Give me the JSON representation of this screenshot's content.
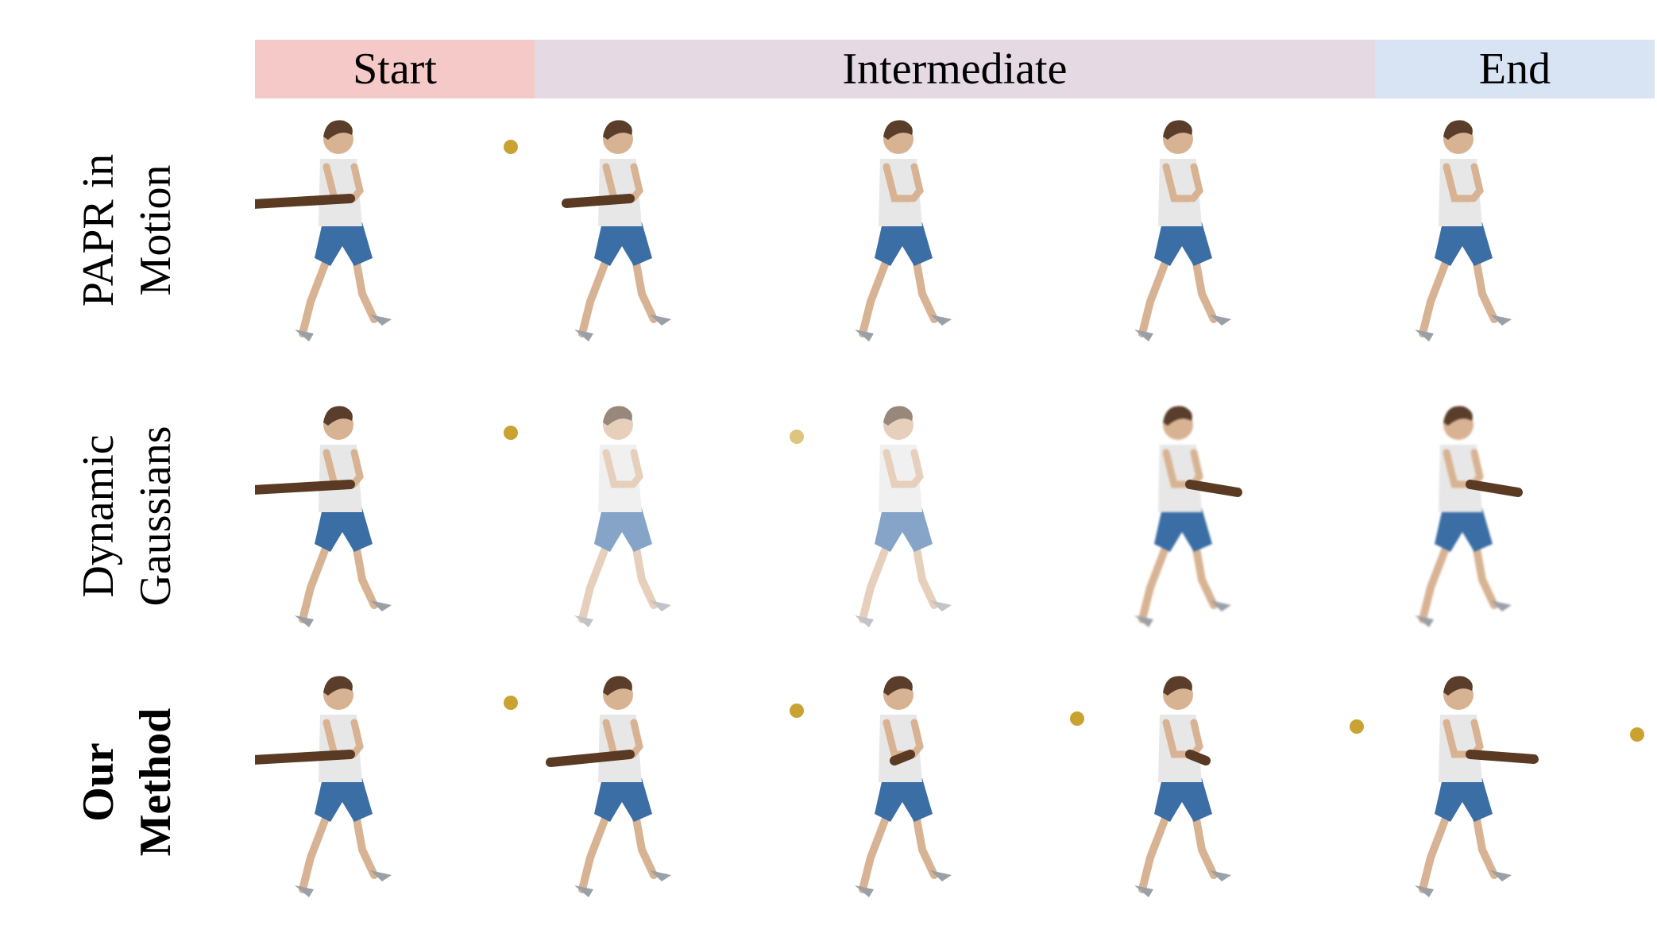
{
  "headers": {
    "start": "Start",
    "intermediate": "Intermediate",
    "end": "End"
  },
  "rows": [
    {
      "label_line1": "PAPR in",
      "label_line2": "Motion",
      "bold": false
    },
    {
      "label_line1": "Dynamic",
      "label_line2": "Gaussians",
      "bold": false
    },
    {
      "label_line1": "Our",
      "label_line2": "Method",
      "bold": true
    }
  ],
  "colors": {
    "start_header": "#f5c9c7",
    "intermediate_header": "#e5dae3",
    "end_header": "#d8e3f4",
    "shirt": "#e7e7e7",
    "shorts": "#3b6ea5",
    "skin": "#d8b393",
    "hair": "#5a3e2b",
    "bat": "#5a3a22",
    "ball": "#c9a232"
  },
  "icons": [
    "batter-figure",
    "baseball-bat",
    "baseball"
  ]
}
